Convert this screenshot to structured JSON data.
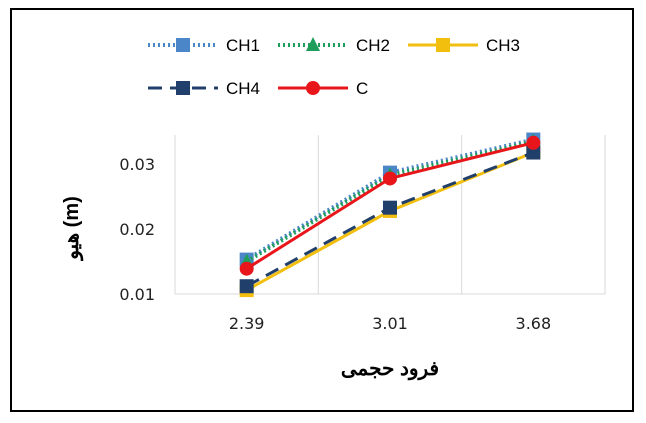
{
  "chart_data": {
    "type": "line",
    "categories": [
      "2.39",
      "3.01",
      "3.68"
    ],
    "xlabel": "فرود حجمی",
    "ylabel": "هیو (m)",
    "ylim": [
      0.01,
      0.035
    ],
    "yticks": [
      "0.01",
      "0.02",
      "0.03"
    ],
    "grid": "vertical",
    "legend_position": "top",
    "series": [
      {
        "name": "CH1",
        "values": [
          0.0153,
          0.0287,
          0.0338
        ],
        "color": "#4A86C8",
        "marker": "square",
        "dash": "dotted"
      },
      {
        "name": "CH2",
        "values": [
          0.015,
          0.0283,
          0.0335
        ],
        "color": "#1E9E5A",
        "marker": "triangle",
        "dash": "dotted"
      },
      {
        "name": "CH3",
        "values": [
          0.0106,
          0.0228,
          0.0318
        ],
        "color": "#F2BF0F",
        "marker": "square",
        "dash": "solid"
      },
      {
        "name": "CH4",
        "values": [
          0.0112,
          0.0233,
          0.0318
        ],
        "color": "#213F6B",
        "marker": "square",
        "dash": "dashed"
      },
      {
        "name": "C",
        "values": [
          0.0139,
          0.0278,
          0.0333
        ],
        "color": "#E8161B",
        "marker": "circle",
        "dash": "solid"
      }
    ]
  }
}
